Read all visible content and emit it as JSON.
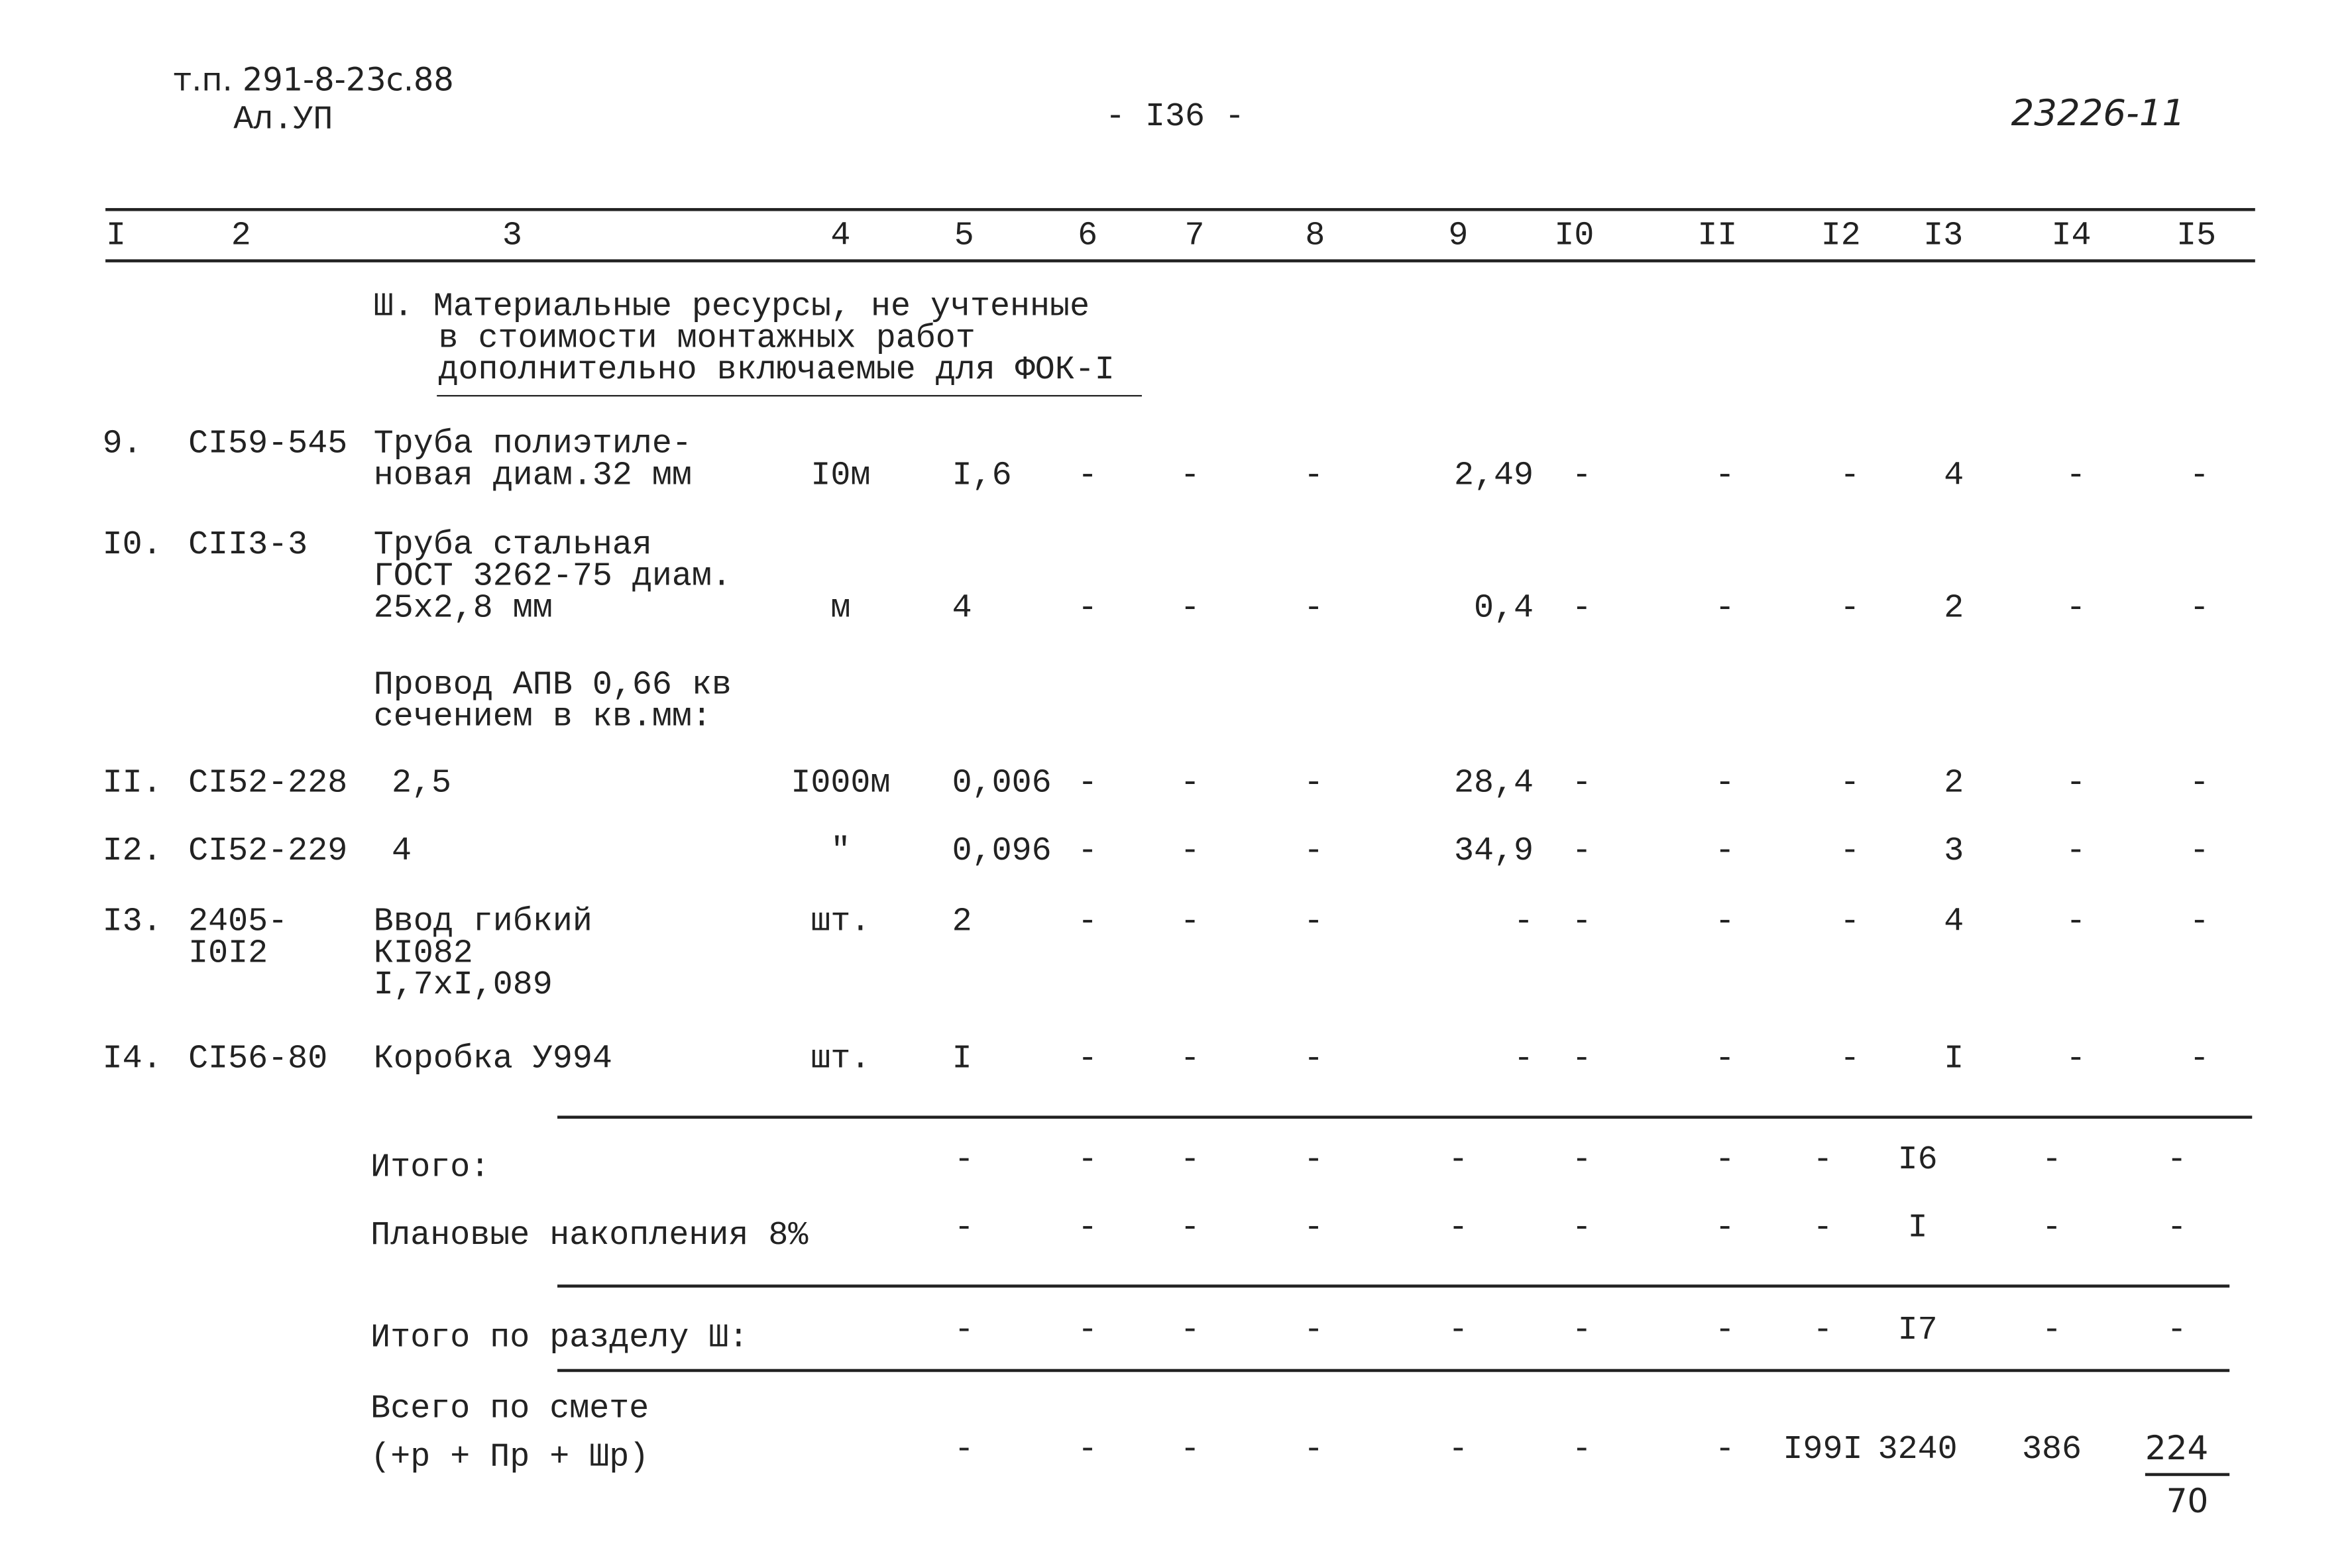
{
  "header": {
    "doc_ref": "т.п. 291-8-23с.88",
    "album": "Ал.УП",
    "page": "- I36 -",
    "code": "23226-11"
  },
  "table": {
    "columns": [
      "I",
      "2",
      "3",
      "4",
      "5",
      "6",
      "7",
      "8",
      "9",
      "I0",
      "II",
      "I2",
      "I3",
      "I4",
      "I5"
    ],
    "section_title": [
      "Ш. Материальные ресурсы, не учтенные",
      "в стоимости монтажных работ",
      "дополнительно включаемые для ФОК-I"
    ],
    "rows": [
      [
        "9.",
        "СI59-545",
        "Труба полиэтиле-\nновая диам.32 мм",
        "I0м",
        "I,6",
        "-",
        "-",
        "-",
        "2,49",
        "-",
        "-",
        "-",
        "4",
        "-",
        "-"
      ],
      [
        "I0.",
        "СII3-3",
        "Труба стальная\nГОСТ 3262-75 диам.\n25х2,8 мм",
        "м",
        "4",
        "-",
        "-",
        "-",
        "0,4",
        "-",
        "-",
        "-",
        "2",
        "-",
        "-"
      ],
      [
        "II.",
        "СI52-228",
        "2,5",
        "I000м",
        "0,006",
        "-",
        "-",
        "-",
        "28,4",
        "-",
        "-",
        "-",
        "2",
        "-",
        "-"
      ],
      [
        "I2.",
        "СI52-229",
        "4",
        "\"",
        "0,096",
        "-",
        "-",
        "-",
        "34,9",
        "-",
        "-",
        "-",
        "3",
        "-",
        "-"
      ],
      [
        "I3.",
        "2405-\nI0I2",
        "Ввод гибкий\nКI082\nI,7хI,089",
        "шт.",
        "2",
        "-",
        "-",
        "-",
        "-",
        "-",
        "-",
        "-",
        "4",
        "-",
        "-"
      ],
      [
        "I4.",
        "СI56-80",
        "Коробка У994",
        "шт.",
        "I",
        "-",
        "-",
        "-",
        "-",
        "-",
        "-",
        "-",
        "I",
        "-",
        "-"
      ]
    ],
    "subheading": "Провод АПВ 0,66 кв\nсечением в кв.мм:",
    "totals": [
      {
        "label": "Итого:",
        "values": [
          "-",
          "-",
          "-",
          "-",
          "-",
          "-",
          "-",
          "-",
          "I6",
          "-",
          "-"
        ]
      },
      {
        "label": "Плановые накопления 8%",
        "values": [
          "-",
          "-",
          "-",
          "-",
          "-",
          "-",
          "-",
          "-",
          "I",
          "-",
          "-"
        ]
      },
      {
        "label": "Итого по разделу Ш:",
        "values": [
          "-",
          "-",
          "-",
          "-",
          "-",
          "-",
          "-",
          "-",
          "I7",
          "-",
          "-"
        ]
      },
      {
        "label": "Всего по смете\n(+р + Пр + Шр)",
        "values": [
          "-",
          "-",
          "-",
          "-",
          "-",
          "-",
          "-",
          "I99I",
          "3240",
          "386"
        ],
        "fraction": {
          "numerator": "224",
          "denominator": "70"
        }
      }
    ]
  }
}
